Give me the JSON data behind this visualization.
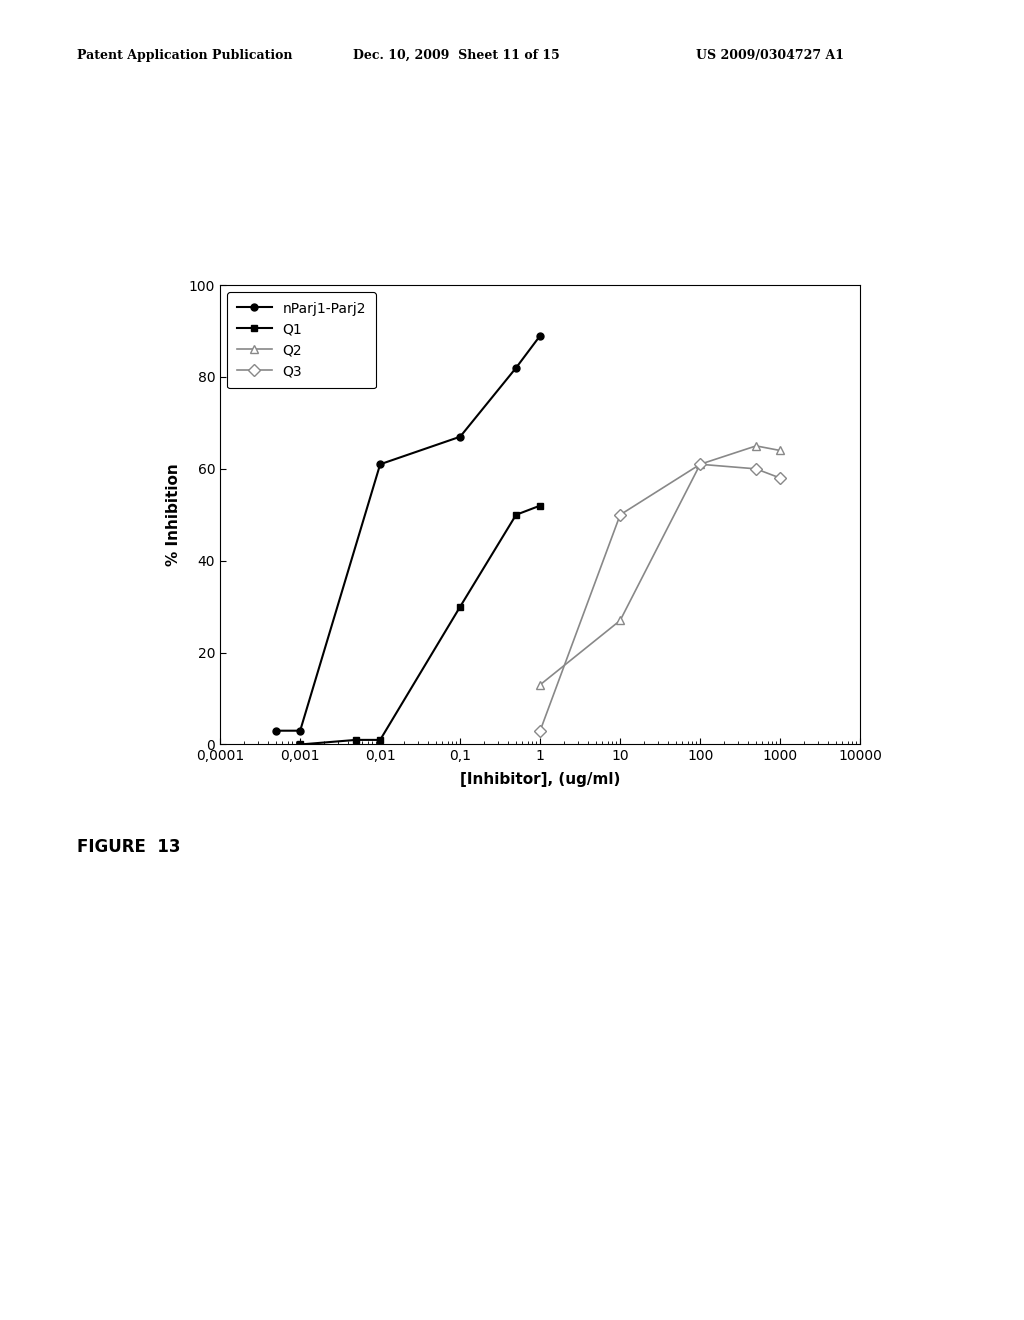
{
  "nParj_x": [
    0.0005,
    0.001,
    0.01,
    0.1,
    0.5,
    1.0
  ],
  "nParj_y": [
    3,
    3,
    61,
    67,
    82,
    89
  ],
  "Q1_x": [
    0.001,
    0.005,
    0.01,
    0.1,
    0.5,
    1.0
  ],
  "Q1_y": [
    0,
    1,
    1,
    30,
    50,
    52
  ],
  "Q2_x": [
    1.0,
    10,
    100,
    500,
    1000
  ],
  "Q2_y": [
    13,
    27,
    61,
    65,
    64
  ],
  "Q3_x": [
    1.0,
    10,
    100,
    500,
    1000
  ],
  "Q3_y": [
    3,
    50,
    61,
    60,
    58
  ],
  "xlabel": "[Inhibitor], (ug/ml)",
  "ylabel": "% Inhibition",
  "xlim_left": 0.0001,
  "xlim_right": 10000,
  "ylim_bottom": 0,
  "ylim_top": 100,
  "xtick_labels": [
    "0,0001",
    "0,001",
    "0,01",
    "0,1",
    "1",
    "10",
    "100",
    "1000",
    "10000"
  ],
  "xtick_values": [
    0.0001,
    0.001,
    0.01,
    0.1,
    1,
    10,
    100,
    1000,
    10000
  ],
  "legend_labels": [
    "nParj1-Parj2",
    "Q1",
    "Q2",
    "Q3"
  ],
  "figure_caption": "FIGURE  13",
  "header_left": "Patent Application Publication",
  "header_center": "Dec. 10, 2009  Sheet 11 of 15",
  "header_right": "US 2009/0304727 A1",
  "bg_color": "#ffffff",
  "line_color_dark": "#000000",
  "line_color_gray": "#888888"
}
